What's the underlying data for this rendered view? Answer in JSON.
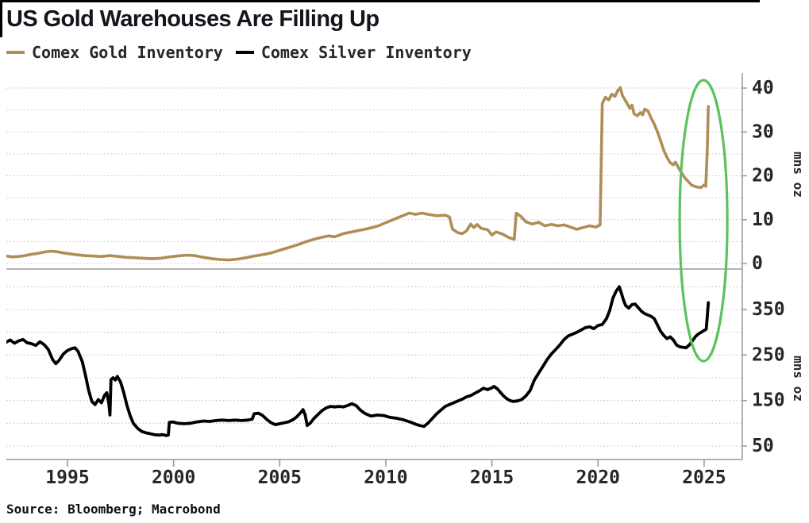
{
  "header": {
    "title": "US Gold Warehouses Are Filling Up",
    "legend": [
      {
        "label": "Comex Gold Inventory",
        "color": "#b08d57"
      },
      {
        "label": "Comex Silver Inventory",
        "color": "#000000"
      }
    ]
  },
  "source": "Source: Bloomberg; Macrobond",
  "colors": {
    "gold_line": "#b08d57",
    "silver_line": "#000000",
    "annotation_green": "#5cc25c",
    "gridline": "#c6c6c9",
    "axis": "#9a9a9a",
    "tick_label": "#26262c",
    "title_text": "#14141c"
  },
  "annotation": {
    "type": "ellipse",
    "color": "#5cc25c",
    "x_center_year": 2024.97,
    "note": "green ellipse highlighting early-2025 inventory spikes in both panels"
  },
  "x_axis": {
    "ticks": [
      1995,
      2000,
      2005,
      2010,
      2015,
      2020,
      2025
    ],
    "range": [
      1992.1,
      2026.7
    ]
  },
  "chart_data": [
    {
      "type": "line",
      "name": "Comex Gold Inventory",
      "panel": "top",
      "ylabel": "mns oz",
      "line_color": "#b08d57",
      "yticks": [
        0,
        10,
        20,
        30,
        40
      ],
      "gridlines": [
        0,
        5,
        10,
        15,
        20,
        25,
        30,
        35,
        40
      ],
      "ylim": [
        0,
        43
      ],
      "points": [
        [
          1992.1,
          1.7
        ],
        [
          1992.4,
          1.5
        ],
        [
          1992.7,
          1.6
        ],
        [
          1993.0,
          1.8
        ],
        [
          1993.3,
          2.1
        ],
        [
          1993.6,
          2.3
        ],
        [
          1993.9,
          2.6
        ],
        [
          1994.2,
          2.8
        ],
        [
          1994.5,
          2.7
        ],
        [
          1994.8,
          2.4
        ],
        [
          1995.1,
          2.2
        ],
        [
          1995.4,
          2.0
        ],
        [
          1995.8,
          1.8
        ],
        [
          1996.2,
          1.7
        ],
        [
          1996.6,
          1.6
        ],
        [
          1997.0,
          1.8
        ],
        [
          1997.4,
          1.6
        ],
        [
          1997.8,
          1.4
        ],
        [
          1998.2,
          1.3
        ],
        [
          1998.6,
          1.2
        ],
        [
          1999.0,
          1.1
        ],
        [
          1999.4,
          1.2
        ],
        [
          1999.8,
          1.5
        ],
        [
          2000.2,
          1.7
        ],
        [
          2000.6,
          1.9
        ],
        [
          2001.0,
          1.8
        ],
        [
          2001.4,
          1.4
        ],
        [
          2001.8,
          1.1
        ],
        [
          2002.2,
          0.9
        ],
        [
          2002.6,
          0.8
        ],
        [
          2003.0,
          1.0
        ],
        [
          2003.4,
          1.3
        ],
        [
          2003.8,
          1.7
        ],
        [
          2004.2,
          2.0
        ],
        [
          2004.6,
          2.4
        ],
        [
          2005.0,
          3.0
        ],
        [
          2005.4,
          3.6
        ],
        [
          2005.8,
          4.2
        ],
        [
          2006.2,
          4.9
        ],
        [
          2006.6,
          5.5
        ],
        [
          2007.0,
          6.0
        ],
        [
          2007.3,
          6.3
        ],
        [
          2007.6,
          6.1
        ],
        [
          2008.0,
          6.8
        ],
        [
          2008.4,
          7.2
        ],
        [
          2008.8,
          7.6
        ],
        [
          2009.2,
          8.0
        ],
        [
          2009.6,
          8.5
        ],
        [
          2010.0,
          9.3
        ],
        [
          2010.4,
          10.1
        ],
        [
          2010.8,
          10.9
        ],
        [
          2011.1,
          11.5
        ],
        [
          2011.4,
          11.2
        ],
        [
          2011.7,
          11.5
        ],
        [
          2012.0,
          11.2
        ],
        [
          2012.4,
          10.9
        ],
        [
          2012.8,
          11.0
        ],
        [
          2013.0,
          10.6
        ],
        [
          2013.15,
          7.8
        ],
        [
          2013.4,
          7.0
        ],
        [
          2013.6,
          6.8
        ],
        [
          2013.8,
          7.4
        ],
        [
          2014.0,
          9.0
        ],
        [
          2014.15,
          8.2
        ],
        [
          2014.3,
          8.9
        ],
        [
          2014.5,
          8.0
        ],
        [
          2014.8,
          7.7
        ],
        [
          2015.0,
          6.5
        ],
        [
          2015.2,
          7.2
        ],
        [
          2015.5,
          6.7
        ],
        [
          2015.8,
          5.9
        ],
        [
          2016.05,
          5.5
        ],
        [
          2016.15,
          11.5
        ],
        [
          2016.35,
          10.8
        ],
        [
          2016.6,
          9.5
        ],
        [
          2016.9,
          9.0
        ],
        [
          2017.2,
          9.4
        ],
        [
          2017.5,
          8.6
        ],
        [
          2017.8,
          8.9
        ],
        [
          2018.1,
          8.6
        ],
        [
          2018.4,
          8.8
        ],
        [
          2018.7,
          8.3
        ],
        [
          2019.0,
          7.8
        ],
        [
          2019.3,
          8.2
        ],
        [
          2019.6,
          8.6
        ],
        [
          2019.9,
          8.3
        ],
        [
          2020.1,
          8.8
        ],
        [
          2020.2,
          36.5
        ],
        [
          2020.35,
          37.9
        ],
        [
          2020.5,
          37.3
        ],
        [
          2020.65,
          38.6
        ],
        [
          2020.8,
          38.1
        ],
        [
          2020.95,
          39.6
        ],
        [
          2021.05,
          40.1
        ],
        [
          2021.15,
          38.3
        ],
        [
          2021.3,
          37.1
        ],
        [
          2021.4,
          36.2
        ],
        [
          2021.5,
          35.4
        ],
        [
          2021.6,
          36.1
        ],
        [
          2021.7,
          34.1
        ],
        [
          2021.85,
          33.7
        ],
        [
          2022.0,
          34.4
        ],
        [
          2022.1,
          33.9
        ],
        [
          2022.2,
          35.2
        ],
        [
          2022.35,
          34.8
        ],
        [
          2022.5,
          33.2
        ],
        [
          2022.65,
          31.8
        ],
        [
          2022.8,
          30.0
        ],
        [
          2022.95,
          28.0
        ],
        [
          2023.1,
          25.8
        ],
        [
          2023.25,
          24.2
        ],
        [
          2023.4,
          23.0
        ],
        [
          2023.55,
          22.5
        ],
        [
          2023.65,
          23.1
        ],
        [
          2023.8,
          21.8
        ],
        [
          2023.95,
          20.6
        ],
        [
          2024.1,
          19.5
        ],
        [
          2024.25,
          18.7
        ],
        [
          2024.4,
          17.9
        ],
        [
          2024.55,
          17.6
        ],
        [
          2024.7,
          17.4
        ],
        [
          2024.85,
          17.3
        ],
        [
          2025.0,
          17.9
        ],
        [
          2025.08,
          17.6
        ],
        [
          2025.15,
          26.0
        ],
        [
          2025.2,
          35.8
        ]
      ]
    },
    {
      "type": "line",
      "name": "Comex Silver Inventory",
      "panel": "bottom",
      "ylabel": "mns oz",
      "line_color": "#000000",
      "yticks": [
        50,
        150,
        250,
        350
      ],
      "gridlines": [
        50,
        100,
        150,
        200,
        250,
        300,
        350,
        400
      ],
      "ylim": [
        20,
        439
      ],
      "points": [
        [
          1992.1,
          278
        ],
        [
          1992.3,
          283
        ],
        [
          1992.5,
          276
        ],
        [
          1992.7,
          281
        ],
        [
          1992.9,
          284
        ],
        [
          1993.1,
          277
        ],
        [
          1993.3,
          275
        ],
        [
          1993.5,
          271
        ],
        [
          1993.7,
          279
        ],
        [
          1993.9,
          273
        ],
        [
          1994.1,
          262
        ],
        [
          1994.3,
          240
        ],
        [
          1994.45,
          231
        ],
        [
          1994.6,
          238
        ],
        [
          1994.8,
          252
        ],
        [
          1995.0,
          260
        ],
        [
          1995.2,
          264
        ],
        [
          1995.35,
          266
        ],
        [
          1995.5,
          258
        ],
        [
          1995.7,
          235
        ],
        [
          1995.85,
          205
        ],
        [
          1996.0,
          172
        ],
        [
          1996.15,
          148
        ],
        [
          1996.3,
          141
        ],
        [
          1996.45,
          152
        ],
        [
          1996.6,
          145
        ],
        [
          1996.75,
          162
        ],
        [
          1996.85,
          167
        ],
        [
          1996.95,
          143
        ],
        [
          1997.0,
          118
        ],
        [
          1997.05,
          196
        ],
        [
          1997.15,
          200
        ],
        [
          1997.25,
          195
        ],
        [
          1997.35,
          203
        ],
        [
          1997.5,
          191
        ],
        [
          1997.65,
          168
        ],
        [
          1997.8,
          140
        ],
        [
          1997.95,
          117
        ],
        [
          1998.1,
          100
        ],
        [
          1998.3,
          89
        ],
        [
          1998.5,
          82
        ],
        [
          1998.7,
          79
        ],
        [
          1998.9,
          77
        ],
        [
          1999.1,
          75
        ],
        [
          1999.3,
          74
        ],
        [
          1999.5,
          75
        ],
        [
          1999.65,
          73
        ],
        [
          1999.75,
          74
        ],
        [
          1999.8,
          102
        ],
        [
          1999.95,
          103
        ],
        [
          2000.2,
          100
        ],
        [
          2000.5,
          99
        ],
        [
          2000.8,
          100
        ],
        [
          2001.1,
          103
        ],
        [
          2001.4,
          105
        ],
        [
          2001.7,
          104
        ],
        [
          2002.0,
          106
        ],
        [
          2002.3,
          107
        ],
        [
          2002.6,
          106
        ],
        [
          2002.9,
          107
        ],
        [
          2003.2,
          106
        ],
        [
          2003.5,
          107
        ],
        [
          2003.7,
          109
        ],
        [
          2003.8,
          121
        ],
        [
          2004.0,
          122
        ],
        [
          2004.2,
          117
        ],
        [
          2004.4,
          108
        ],
        [
          2004.6,
          101
        ],
        [
          2004.8,
          97
        ],
        [
          2005.0,
          99
        ],
        [
          2005.2,
          101
        ],
        [
          2005.4,
          103
        ],
        [
          2005.6,
          107
        ],
        [
          2005.8,
          114
        ],
        [
          2006.0,
          124
        ],
        [
          2006.1,
          130
        ],
        [
          2006.2,
          118
        ],
        [
          2006.3,
          95
        ],
        [
          2006.45,
          101
        ],
        [
          2006.6,
          110
        ],
        [
          2006.8,
          119
        ],
        [
          2007.0,
          128
        ],
        [
          2007.2,
          134
        ],
        [
          2007.4,
          137
        ],
        [
          2007.6,
          136
        ],
        [
          2007.8,
          137
        ],
        [
          2008.0,
          136
        ],
        [
          2008.2,
          139
        ],
        [
          2008.4,
          143
        ],
        [
          2008.6,
          139
        ],
        [
          2008.8,
          129
        ],
        [
          2009.0,
          122
        ],
        [
          2009.3,
          116
        ],
        [
          2009.6,
          118
        ],
        [
          2009.9,
          117
        ],
        [
          2010.2,
          113
        ],
        [
          2010.5,
          111
        ],
        [
          2010.8,
          108
        ],
        [
          2011.0,
          105
        ],
        [
          2011.2,
          102
        ],
        [
          2011.4,
          98
        ],
        [
          2011.6,
          95
        ],
        [
          2011.8,
          93
        ],
        [
          2012.0,
          101
        ],
        [
          2012.2,
          111
        ],
        [
          2012.4,
          121
        ],
        [
          2012.6,
          129
        ],
        [
          2012.8,
          137
        ],
        [
          2013.0,
          141
        ],
        [
          2013.2,
          145
        ],
        [
          2013.4,
          149
        ],
        [
          2013.6,
          153
        ],
        [
          2013.8,
          158
        ],
        [
          2014.0,
          161
        ],
        [
          2014.2,
          166
        ],
        [
          2014.4,
          171
        ],
        [
          2014.6,
          177
        ],
        [
          2014.8,
          174
        ],
        [
          2015.0,
          178
        ],
        [
          2015.1,
          181
        ],
        [
          2015.25,
          176
        ],
        [
          2015.4,
          168
        ],
        [
          2015.55,
          160
        ],
        [
          2015.7,
          154
        ],
        [
          2015.85,
          150
        ],
        [
          2016.0,
          148
        ],
        [
          2016.2,
          149
        ],
        [
          2016.4,
          152
        ],
        [
          2016.6,
          160
        ],
        [
          2016.8,
          172
        ],
        [
          2017.0,
          195
        ],
        [
          2017.2,
          210
        ],
        [
          2017.4,
          225
        ],
        [
          2017.6,
          240
        ],
        [
          2017.8,
          252
        ],
        [
          2018.0,
          262
        ],
        [
          2018.2,
          272
        ],
        [
          2018.4,
          284
        ],
        [
          2018.6,
          292
        ],
        [
          2018.8,
          296
        ],
        [
          2019.0,
          300
        ],
        [
          2019.2,
          305
        ],
        [
          2019.4,
          310
        ],
        [
          2019.6,
          312
        ],
        [
          2019.8,
          308
        ],
        [
          2020.0,
          315
        ],
        [
          2020.2,
          317
        ],
        [
          2020.4,
          330
        ],
        [
          2020.55,
          348
        ],
        [
          2020.7,
          375
        ],
        [
          2020.85,
          390
        ],
        [
          2021.0,
          400
        ],
        [
          2021.1,
          386
        ],
        [
          2021.2,
          371
        ],
        [
          2021.3,
          359
        ],
        [
          2021.45,
          353
        ],
        [
          2021.6,
          361
        ],
        [
          2021.75,
          362
        ],
        [
          2021.9,
          354
        ],
        [
          2022.05,
          346
        ],
        [
          2022.2,
          341
        ],
        [
          2022.35,
          338
        ],
        [
          2022.5,
          335
        ],
        [
          2022.65,
          330
        ],
        [
          2022.8,
          316
        ],
        [
          2022.95,
          302
        ],
        [
          2023.1,
          293
        ],
        [
          2023.25,
          286
        ],
        [
          2023.4,
          290
        ],
        [
          2023.55,
          283
        ],
        [
          2023.7,
          272
        ],
        [
          2023.85,
          268
        ],
        [
          2024.0,
          267
        ],
        [
          2024.15,
          266
        ],
        [
          2024.3,
          272
        ],
        [
          2024.45,
          281
        ],
        [
          2024.6,
          291
        ],
        [
          2024.75,
          297
        ],
        [
          2024.9,
          301
        ],
        [
          2025.0,
          304
        ],
        [
          2025.1,
          307
        ],
        [
          2025.15,
          335
        ],
        [
          2025.2,
          365
        ]
      ]
    }
  ]
}
